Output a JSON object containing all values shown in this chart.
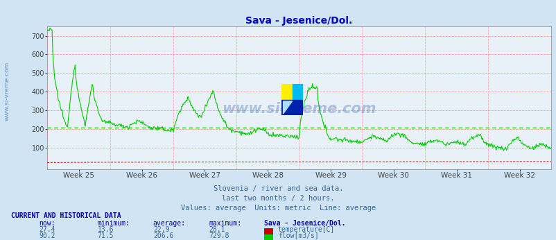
{
  "title": "Sava - Jesenice/Dol.",
  "title_color": "#0000cc",
  "bg_color": "#d0e4f4",
  "plot_bg_color": "#e8f0f8",
  "grid_color_h": "#ff9999",
  "grid_color_v": "#ffaaaa",
  "x_labels": [
    "Week 25",
    "Week 26",
    "Week 27",
    "Week 28",
    "Week 29",
    "Week 30",
    "Week 31",
    "Week 32"
  ],
  "y_ticks": [
    100,
    200,
    300,
    400,
    500,
    600,
    700
  ],
  "y_lim": [
    -15,
    750
  ],
  "avg_flow": 206.6,
  "footer_lines": [
    "Slovenia / river and sea data.",
    "last two months / 2 hours.",
    "Values: average  Units: metric  Line: average"
  ],
  "table_header": "CURRENT AND HISTORICAL DATA",
  "col_headers": [
    "now:",
    "minimum:",
    "average:",
    "maximum:",
    "Sava - Jesenice/Dol."
  ],
  "temp_row": [
    "27.4",
    "13.6",
    "22.9",
    "28.1"
  ],
  "flow_row": [
    "90.2",
    "71.5",
    "206.6",
    "729.8"
  ],
  "temp_label": "temperature[C]",
  "flow_label": "flow[m3/s]",
  "temp_color": "#cc0000",
  "flow_color": "#00cc00",
  "watermark": "www.si-vreme.com",
  "sidebar_text": "www.si-vreme.com",
  "n_points": 744
}
